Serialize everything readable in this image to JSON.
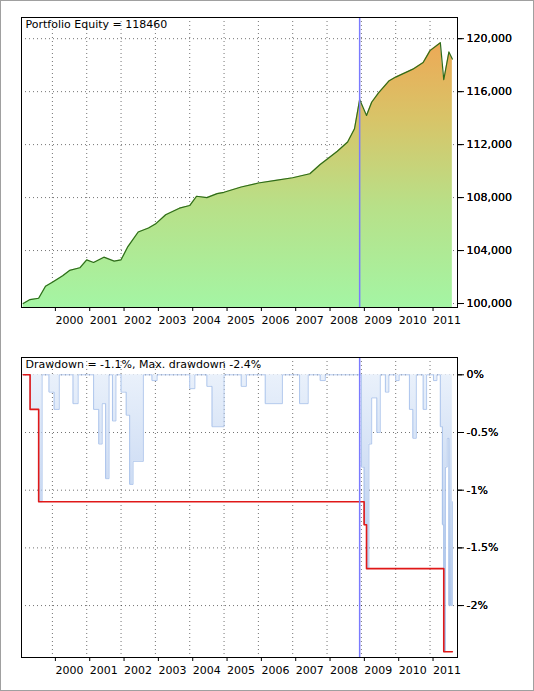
{
  "chart_data": [
    {
      "type": "area",
      "title": "Portfolio Equity = 118460",
      "x": [
        1999.15,
        1999.35,
        1999.6,
        1999.8,
        2000.0,
        2000.3,
        2000.5,
        2000.8,
        2001.0,
        2001.2,
        2001.5,
        2001.8,
        2002.0,
        2002.2,
        2002.5,
        2002.8,
        2003.0,
        2003.3,
        2003.7,
        2004.0,
        2004.2,
        2004.5,
        2004.8,
        2005.0,
        2005.5,
        2006.0,
        2006.5,
        2007.0,
        2007.5,
        2007.8,
        2008.0,
        2008.3,
        2008.6,
        2008.8,
        2008.95,
        2009.15,
        2009.3,
        2009.5,
        2009.8,
        2010.0,
        2010.5,
        2010.8,
        2011.0,
        2011.3,
        2011.4,
        2011.55,
        2011.65
      ],
      "values": [
        100000,
        100300,
        100400,
        101300,
        101600,
        102100,
        102500,
        102700,
        103300,
        103100,
        103500,
        103200,
        103300,
        104300,
        105400,
        105700,
        106000,
        106700,
        107200,
        107400,
        108100,
        108000,
        108300,
        108400,
        108800,
        109100,
        109300,
        109500,
        109800,
        110500,
        110900,
        111500,
        112200,
        113200,
        115400,
        114200,
        115200,
        115900,
        116800,
        117100,
        117700,
        118200,
        119100,
        119700,
        116900,
        119000,
        118460
      ],
      "color": "#2e6b1a",
      "xlim": [
        1999.1,
        2011.8
      ],
      "xticks": [
        2000,
        2001,
        2002,
        2003,
        2004,
        2005,
        2006,
        2007,
        2008,
        2009,
        2010,
        2011
      ],
      "ylim": [
        99700,
        121600
      ],
      "yticks": [
        {
          "value": 100000,
          "label": "100,000"
        },
        {
          "value": 104000,
          "label": "104,000"
        },
        {
          "value": 108000,
          "label": "108,000"
        },
        {
          "value": 112000,
          "label": "112,000"
        },
        {
          "value": 116000,
          "label": "116,000"
        },
        {
          "value": 120000,
          "label": "120,000"
        }
      ],
      "grid": true,
      "vline": 2008.95
    },
    {
      "type": "area",
      "title": "Drawdown = -1.1%, Max. drawdown -2.4%",
      "x": [
        1999.15,
        1999.35,
        1999.6,
        1999.7,
        1999.9,
        2000.05,
        2000.2,
        2000.6,
        2000.75,
        2001.2,
        2001.35,
        2001.45,
        2001.55,
        2001.65,
        2001.75,
        2001.85,
        2002.0,
        2002.15,
        2002.25,
        2002.35,
        2002.65,
        2002.9,
        2003.05,
        2004.0,
        2004.15,
        2004.5,
        2004.65,
        2005.0,
        2005.5,
        2005.65,
        2006.2,
        2006.7,
        2007.2,
        2007.45,
        2007.8,
        2007.95,
        2009.0,
        2009.08,
        2009.15,
        2009.22,
        2009.3,
        2009.45,
        2009.55,
        2009.7,
        2009.8,
        2010.0,
        2010.1,
        2010.4,
        2010.5,
        2010.6,
        2010.8,
        2010.9,
        2011.1,
        2011.2,
        2011.3,
        2011.36,
        2011.4,
        2011.45,
        2011.5,
        2011.55,
        2011.65
      ],
      "series": [
        {
          "name": "Drawdown",
          "type": "area",
          "line_style": "step",
          "color": "#9fbbe8",
          "values": [
            0,
            -0.3,
            -1.1,
            0,
            -0.15,
            -0.3,
            0,
            -0.25,
            0,
            -0.3,
            -0.6,
            -0.25,
            -0.9,
            0,
            -0.4,
            0,
            -0.15,
            -0.35,
            -0.95,
            -0.75,
            0,
            -0.05,
            0,
            -0.12,
            0,
            -0.1,
            -0.45,
            0,
            -0.1,
            0,
            -0.25,
            0,
            -0.25,
            0,
            -0.05,
            0,
            -0.8,
            -1.3,
            -1.68,
            -0.6,
            -0.2,
            -0.5,
            0,
            -0.15,
            0,
            -0.05,
            0,
            -0.3,
            -0.55,
            0,
            -0.3,
            0,
            -0.05,
            0,
            -0.45,
            -1.3,
            -2.4,
            -0.8,
            -0.55,
            -2.0,
            -1.1
          ]
        },
        {
          "name": "Max. drawdown",
          "type": "line",
          "line_style": "step",
          "color": "#e01818",
          "values": [
            0,
            -0.3,
            -1.1,
            -1.1,
            -1.1,
            -1.1,
            -1.1,
            -1.1,
            -1.1,
            -1.1,
            -1.1,
            -1.1,
            -1.1,
            -1.1,
            -1.1,
            -1.1,
            -1.1,
            -1.1,
            -1.1,
            -1.1,
            -1.1,
            -1.1,
            -1.1,
            -1.1,
            -1.1,
            -1.1,
            -1.1,
            -1.1,
            -1.1,
            -1.1,
            -1.1,
            -1.1,
            -1.1,
            -1.1,
            -1.1,
            -1.1,
            -1.1,
            -1.3,
            -1.68,
            -1.68,
            -1.68,
            -1.68,
            -1.68,
            -1.68,
            -1.68,
            -1.68,
            -1.68,
            -1.68,
            -1.68,
            -1.68,
            -1.68,
            -1.68,
            -1.68,
            -1.68,
            -1.68,
            -1.68,
            -2.4,
            -2.4,
            -2.4,
            -2.4,
            -2.4
          ]
        }
      ],
      "xlim": [
        1999.1,
        2011.8
      ],
      "xticks": [
        2000,
        2001,
        2002,
        2003,
        2004,
        2005,
        2006,
        2007,
        2008,
        2009,
        2010,
        2011
      ],
      "ylim": [
        -2.45,
        0.15
      ],
      "yticks": [
        {
          "value": 0,
          "label": "0%"
        },
        {
          "value": -0.5,
          "label": "-0.5%"
        },
        {
          "value": -1,
          "label": "-1%"
        },
        {
          "value": -1.5,
          "label": "-1.5%"
        },
        {
          "value": -2,
          "label": "-2%"
        }
      ],
      "grid": true,
      "vline": 2008.95
    }
  ]
}
